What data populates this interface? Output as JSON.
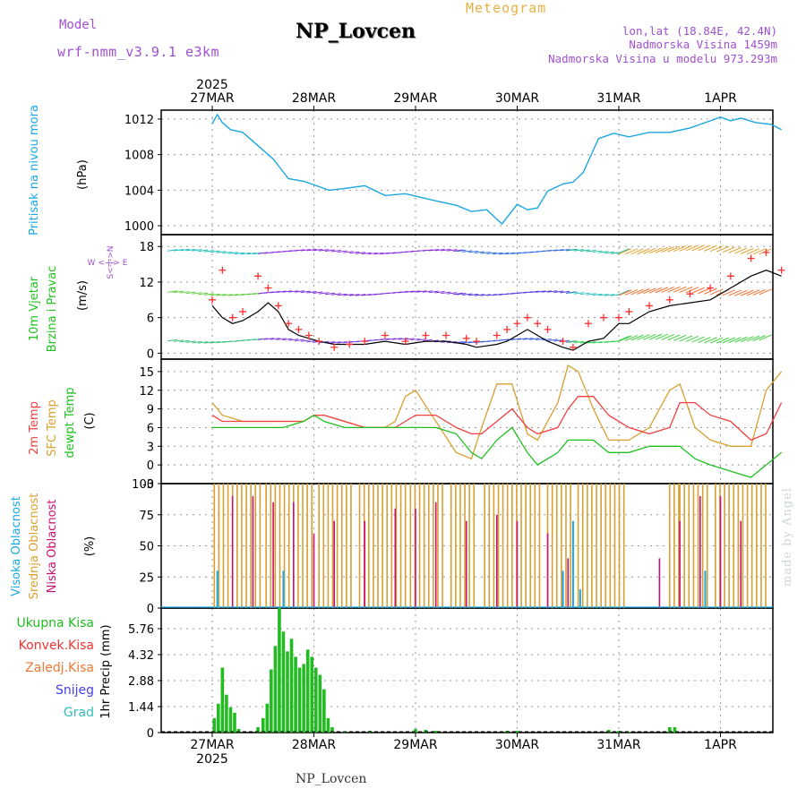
{
  "header": {
    "model_label": "Model",
    "model_name": "wrf-nmm_v3.9.1  e3km",
    "station_title": "NP_Lovcen",
    "meteogram_label": "Meteogram",
    "lonlat": "lon,lat (18.84E, 42.4N)",
    "altitude": "Nadmorska Visina 1459m",
    "model_altitude": "Nadmorska Visina u modelu 973.293m"
  },
  "footer": {
    "station": "NP_Lovcen",
    "watermark": "made by Angel"
  },
  "colors": {
    "pressure": "#1aa7e0",
    "speed": "#000000",
    "gust": "#ff3030",
    "t2m": "#f04040",
    "sfc": "#d8a030",
    "dew": "#20c020",
    "high_cloud": "#1aa7e0",
    "mid_cloud": "#d8a030",
    "low_cloud": "#cc1070",
    "total_precip": "#22bb22",
    "conv_precip": "#ee3333",
    "frz_precip": "#ee7733",
    "snow": "#4040ee",
    "graupel": "#33bbbb"
  },
  "chart_data": [
    {
      "type": "line",
      "title": "Pritisak na nivou mora",
      "unit_label": "(hPa)",
      "x_ticks": [
        "27MAR",
        "28MAR",
        "29MAR",
        "30MAR",
        "31MAR",
        "1APR"
      ],
      "year_label": "2025",
      "ylim": [
        999,
        1013
      ],
      "y_ticks": [
        1000,
        1004,
        1008,
        1012
      ],
      "series": [
        {
          "name": "Pritisak",
          "x": [
            0.0,
            0.05,
            0.1,
            0.18,
            0.3,
            0.45,
            0.6,
            0.75,
            0.9,
            1.0,
            1.15,
            1.3,
            1.5,
            1.7,
            1.9,
            2.05,
            2.2,
            2.4,
            2.55,
            2.7,
            2.85,
            3.0,
            3.1,
            3.2,
            3.3,
            3.45,
            3.55,
            3.65,
            3.8,
            3.95,
            4.1,
            4.3,
            4.5,
            4.7,
            4.9,
            5.0,
            5.1,
            5.2,
            5.35,
            5.5,
            5.6
          ],
          "y": [
            1011.5,
            1012.5,
            1011.6,
            1010.8,
            1010.5,
            1009,
            1007.5,
            1005.3,
            1005,
            1004.6,
            1004.0,
            1004.2,
            1004.5,
            1003.4,
            1003.6,
            1003.2,
            1002.8,
            1002.3,
            1001.6,
            1001.8,
            1000.2,
            1002.4,
            1001.8,
            1002.0,
            1003.9,
            1004.7,
            1004.9,
            1006.0,
            1009.8,
            1010.4,
            1010.0,
            1010.5,
            1010.5,
            1011.0,
            1011.8,
            1012.2,
            1011.8,
            1012.1,
            1011.6,
            1011.4,
            1010.8
          ]
        }
      ]
    },
    {
      "type": "line",
      "title": "10m Vjetar Brzina i Pravac",
      "unit_label": "(m/s)",
      "compass_label": "W <-|-> E",
      "compass_label_v": "S<-|->N",
      "ylim": [
        -1,
        20
      ],
      "y_ticks": [
        0,
        6,
        12,
        18
      ],
      "series": [
        {
          "name": "Brzina",
          "x": [
            0.0,
            0.1,
            0.2,
            0.3,
            0.45,
            0.55,
            0.65,
            0.75,
            0.85,
            0.95,
            1.05,
            1.2,
            1.35,
            1.5,
            1.7,
            1.9,
            2.1,
            2.3,
            2.5,
            2.6,
            2.8,
            2.9,
            3.0,
            3.1,
            3.2,
            3.3,
            3.45,
            3.55,
            3.7,
            3.85,
            4.0,
            4.1,
            4.3,
            4.5,
            4.7,
            4.9,
            5.1,
            5.3,
            5.45,
            5.6
          ],
          "y": [
            8,
            6,
            5,
            5.5,
            7,
            8.5,
            7,
            4,
            3,
            2.5,
            2,
            1.5,
            1.5,
            1.5,
            2,
            1.5,
            2,
            2,
            1.5,
            1,
            1.5,
            2,
            3,
            4,
            3,
            2,
            1,
            0.5,
            2,
            2.5,
            5,
            5,
            7,
            8,
            8.5,
            9,
            11,
            13,
            14,
            13
          ]
        },
        {
          "name": "Udari",
          "x": [
            0.0,
            0.1,
            0.2,
            0.3,
            0.45,
            0.55,
            0.65,
            0.75,
            0.85,
            0.95,
            1.05,
            1.2,
            1.35,
            1.5,
            1.7,
            1.9,
            2.1,
            2.3,
            2.5,
            2.6,
            2.8,
            2.9,
            3.0,
            3.1,
            3.2,
            3.3,
            3.45,
            3.55,
            3.7,
            3.85,
            4.0,
            4.1,
            4.3,
            4.5,
            4.7,
            4.9,
            5.1,
            5.3,
            5.45,
            5.6
          ],
          "y": [
            9,
            14,
            6,
            7,
            13,
            11,
            8,
            5,
            4,
            3,
            2,
            1,
            1.5,
            2,
            3,
            2,
            3,
            3,
            2.5,
            2,
            3,
            4,
            5,
            6,
            5,
            4,
            2,
            1,
            5,
            6,
            6,
            7,
            8,
            9,
            10,
            11,
            13,
            16,
            17,
            14
          ]
        }
      ]
    },
    {
      "type": "line",
      "title_t2m": "2m Temp",
      "title_sfc": "SFC Temp",
      "title_dew": "dewpt Temp",
      "unit_label": "(C)",
      "ylim": [
        -3,
        17
      ],
      "y_ticks": [
        -3,
        0,
        3,
        6,
        9,
        12,
        15
      ],
      "series": [
        {
          "name": "2m Temp",
          "x": [
            0.0,
            0.1,
            0.3,
            0.5,
            0.7,
            0.9,
            1.0,
            1.1,
            1.3,
            1.5,
            1.7,
            1.8,
            1.9,
            2.0,
            2.2,
            2.4,
            2.55,
            2.65,
            2.8,
            2.95,
            3.1,
            3.2,
            3.4,
            3.5,
            3.6,
            3.75,
            3.9,
            4.1,
            4.3,
            4.5,
            4.6,
            4.75,
            4.9,
            5.1,
            5.3,
            5.45,
            5.6
          ],
          "y": [
            8,
            7,
            7,
            7,
            7,
            7,
            8,
            8,
            7,
            6,
            6,
            6,
            7,
            8,
            8,
            6,
            5,
            5,
            7,
            9,
            6,
            5,
            6,
            9,
            11,
            11,
            8,
            6,
            5,
            6,
            10,
            10,
            8,
            7,
            4,
            5,
            10
          ]
        },
        {
          "name": "SFC Temp",
          "x": [
            0.0,
            0.1,
            0.3,
            0.5,
            0.7,
            0.9,
            1.0,
            1.1,
            1.3,
            1.5,
            1.7,
            1.8,
            1.9,
            2.0,
            2.2,
            2.4,
            2.55,
            2.65,
            2.8,
            2.95,
            3.1,
            3.2,
            3.4,
            3.5,
            3.6,
            3.75,
            3.9,
            4.1,
            4.3,
            4.5,
            4.6,
            4.75,
            4.9,
            5.1,
            5.3,
            5.45,
            5.6
          ],
          "y": [
            10,
            8,
            7,
            7,
            7,
            7,
            8,
            8,
            7,
            6,
            6,
            7,
            11,
            12,
            7,
            2,
            1,
            6,
            13,
            13,
            5,
            4,
            10,
            16,
            15,
            9,
            4,
            4,
            6,
            12,
            13,
            6,
            4,
            3,
            3,
            12,
            15
          ]
        },
        {
          "name": "dewpt Temp",
          "x": [
            0.0,
            0.1,
            0.3,
            0.5,
            0.7,
            0.9,
            1.0,
            1.1,
            1.3,
            1.5,
            1.7,
            1.8,
            1.9,
            2.0,
            2.2,
            2.4,
            2.55,
            2.65,
            2.8,
            2.95,
            3.1,
            3.2,
            3.4,
            3.5,
            3.6,
            3.75,
            3.9,
            4.1,
            4.3,
            4.5,
            4.6,
            4.75,
            4.9,
            5.1,
            5.3,
            5.45,
            5.6
          ],
          "y": [
            6,
            6,
            6,
            6,
            6,
            7,
            8,
            7,
            6,
            6,
            6,
            6,
            6,
            6,
            6,
            5,
            2,
            1,
            4,
            6,
            2,
            0,
            2,
            4,
            4,
            4,
            2,
            2,
            3,
            3,
            3,
            1,
            0,
            -1,
            -2,
            0,
            2
          ]
        }
      ]
    },
    {
      "type": "bar",
      "title_high": "Visoka Oblacnost",
      "title_mid": "Srednja Oblacnost",
      "title_low": "Niska Oblacnost",
      "unit_label": "(%)",
      "ylim": [
        0,
        100
      ],
      "y_ticks": [
        0,
        25,
        50,
        75,
        100
      ],
      "mid_blocks": [
        [
          0.02,
          0.5
        ],
        [
          0.53,
          1.0
        ],
        [
          1.05,
          1.4
        ],
        [
          1.45,
          1.9
        ],
        [
          1.95,
          2.3
        ],
        [
          2.35,
          2.6
        ],
        [
          2.68,
          3.25
        ],
        [
          3.3,
          3.55
        ],
        [
          3.6,
          4.05
        ],
        [
          4.5,
          4.6
        ],
        [
          4.6,
          4.9
        ],
        [
          4.95,
          5.45
        ]
      ],
      "low_spikes": [
        [
          0.2,
          90
        ],
        [
          0.4,
          90
        ],
        [
          0.6,
          85
        ],
        [
          0.8,
          85
        ],
        [
          1.0,
          60
        ],
        [
          1.2,
          70
        ],
        [
          1.5,
          70
        ],
        [
          1.8,
          80
        ],
        [
          2.0,
          80
        ],
        [
          2.2,
          85
        ],
        [
          2.5,
          70
        ],
        [
          2.8,
          75
        ],
        [
          3.0,
          70
        ],
        [
          3.3,
          60
        ],
        [
          3.5,
          40
        ],
        [
          4.4,
          40
        ],
        [
          4.6,
          70
        ],
        [
          4.8,
          90
        ],
        [
          5.0,
          90
        ],
        [
          5.2,
          70
        ]
      ],
      "high_spikes": [
        [
          0.05,
          30
        ],
        [
          0.7,
          30
        ],
        [
          3.45,
          30
        ],
        [
          3.55,
          70
        ],
        [
          3.62,
          15
        ],
        [
          4.85,
          30
        ]
      ]
    },
    {
      "type": "bar",
      "title_total": "Ukupna Kisa",
      "title_conv": "Konvek.Kisa",
      "title_frz": "Zaledj.Kisa",
      "title_snow": "Snijeg",
      "title_grad": "Grad",
      "unit_label": "1hr Precip (mm)",
      "ylim": [
        0,
        6.9
      ],
      "y_ticks": [
        "0",
        "1.44",
        "2.88",
        "4.32",
        "5.76"
      ],
      "y_tick_values": [
        0,
        1.44,
        2.88,
        4.32,
        5.76
      ],
      "x_ticks": [
        "27MAR",
        "28MAR",
        "29MAR",
        "30MAR",
        "31MAR",
        "1APR"
      ],
      "year_label": "2025",
      "total": [
        [
          0.02,
          0.8
        ],
        [
          0.06,
          1.6
        ],
        [
          0.1,
          3.6
        ],
        [
          0.14,
          2.1
        ],
        [
          0.18,
          1.4
        ],
        [
          0.22,
          1.1
        ],
        [
          0.26,
          0.2
        ],
        [
          0.45,
          0.3
        ],
        [
          0.5,
          0.8
        ],
        [
          0.54,
          1.6
        ],
        [
          0.58,
          3.5
        ],
        [
          0.62,
          4.8
        ],
        [
          0.66,
          6.9
        ],
        [
          0.7,
          5.6
        ],
        [
          0.74,
          4.5
        ],
        [
          0.78,
          5.2
        ],
        [
          0.82,
          4.2
        ],
        [
          0.86,
          3.6
        ],
        [
          0.9,
          3.8
        ],
        [
          0.94,
          4.6
        ],
        [
          0.98,
          4.2
        ],
        [
          1.02,
          3.6
        ],
        [
          1.06,
          3.2
        ],
        [
          1.1,
          2.4
        ],
        [
          1.14,
          0.8
        ],
        [
          1.18,
          0.3
        ],
        [
          1.3,
          0.05
        ],
        [
          1.55,
          0.1
        ],
        [
          2.0,
          0.2
        ],
        [
          2.1,
          0.15
        ],
        [
          2.2,
          0.1
        ],
        [
          2.9,
          0.1
        ],
        [
          3.0,
          0.1
        ],
        [
          3.9,
          0.15
        ],
        [
          4.0,
          0.1
        ],
        [
          4.1,
          0.05
        ],
        [
          4.5,
          0.3
        ],
        [
          4.55,
          0.3
        ]
      ]
    }
  ]
}
